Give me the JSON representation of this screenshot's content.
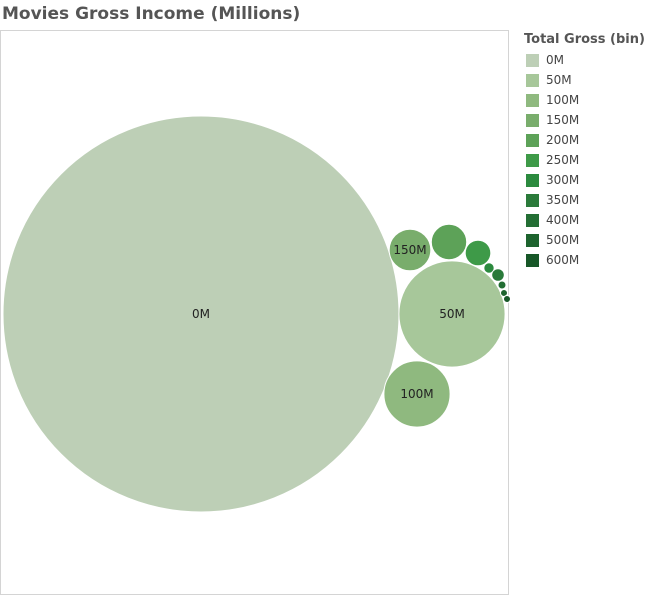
{
  "chart_data": {
    "type": "bubble",
    "title": "Movies Gross Income (Millions)",
    "legend_title": "Total Gross (bin)",
    "legend_position": "right",
    "bins": [
      {
        "label": "0M",
        "color": "#bdcfb6",
        "size": 1.0,
        "shown_label": "0M"
      },
      {
        "label": "50M",
        "color": "#a7c79a",
        "size": 0.072,
        "shown_label": "50M"
      },
      {
        "label": "100M",
        "color": "#8fb97f",
        "size": 0.028,
        "shown_label": "100M"
      },
      {
        "label": "150M",
        "color": "#79ad6c",
        "size": 0.011,
        "shown_label": "150M"
      },
      {
        "label": "200M",
        "color": "#5da258",
        "size": 0.008,
        "shown_label": ""
      },
      {
        "label": "250M",
        "color": "#3e9a48",
        "size": 0.0042,
        "shown_label": ""
      },
      {
        "label": "300M",
        "color": "#2b8a3e",
        "size": 0.0007,
        "shown_label": ""
      },
      {
        "label": "350M",
        "color": "#2a7a3a",
        "size": 0.001,
        "shown_label": ""
      },
      {
        "label": "400M",
        "color": "#236e34",
        "size": 0.0004,
        "shown_label": ""
      },
      {
        "label": "500M",
        "color": "#1d632e",
        "size": 0.0003,
        "shown_label": ""
      },
      {
        "label": "600M",
        "color": "#175728",
        "size": 0.0003,
        "shown_label": ""
      }
    ]
  }
}
